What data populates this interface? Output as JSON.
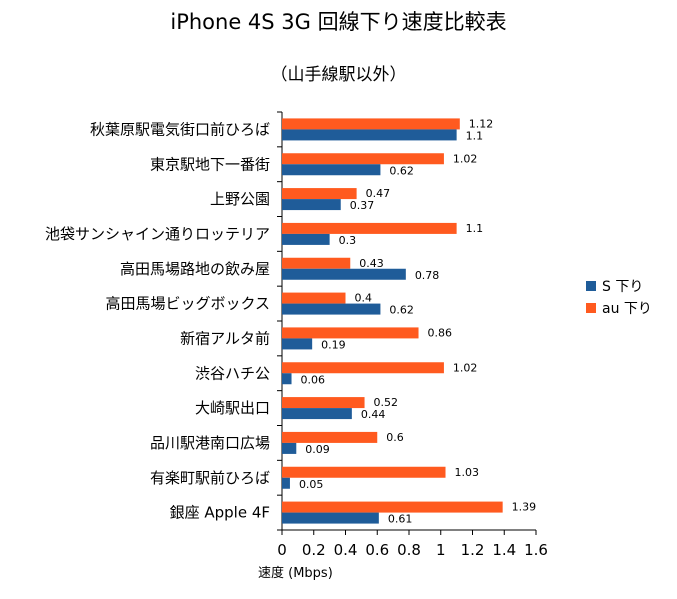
{
  "chart_data": {
    "type": "bar",
    "orientation": "horizontal",
    "title": "iPhone 4S 3G 回線下り速度比較表",
    "subtitle": "（山手線駅以外）",
    "xlabel": "速度 (Mbps)",
    "ylabel": "",
    "xlim": [
      0,
      1.6
    ],
    "xticks": [
      "0",
      "0.2",
      "0.4",
      "0.6",
      "0.8",
      "1",
      "1.2",
      "1.4",
      "1.6"
    ],
    "xtick_values": [
      0,
      0.2,
      0.4,
      0.6,
      0.8,
      1,
      1.2,
      1.4,
      1.6
    ],
    "grid": false,
    "legend_position": "right",
    "categories": [
      "秋葉原駅電気街口前ひろば",
      "東京駅地下一番街",
      "上野公園",
      "池袋サンシャイン通りロッテリア",
      "高田馬場路地の飲み屋",
      "高田馬場ビッグボックス",
      "新宿アルタ前",
      "渋谷ハチ公",
      "大崎駅出口",
      "品川駅港南口広場",
      "有楽町駅前ひろば",
      "銀座 Apple 4F"
    ],
    "series": [
      {
        "name": "S 下り",
        "color": "#1f5c99",
        "values": [
          1.1,
          0.62,
          0.37,
          0.3,
          0.78,
          0.62,
          0.19,
          0.06,
          0.44,
          0.09,
          0.05,
          0.61
        ]
      },
      {
        "name": "au 下り",
        "color": "#ff5a1f",
        "values": [
          1.12,
          1.02,
          0.47,
          1.1,
          0.43,
          0.4,
          0.86,
          1.02,
          0.52,
          0.6,
          1.03,
          1.39
        ]
      }
    ]
  }
}
